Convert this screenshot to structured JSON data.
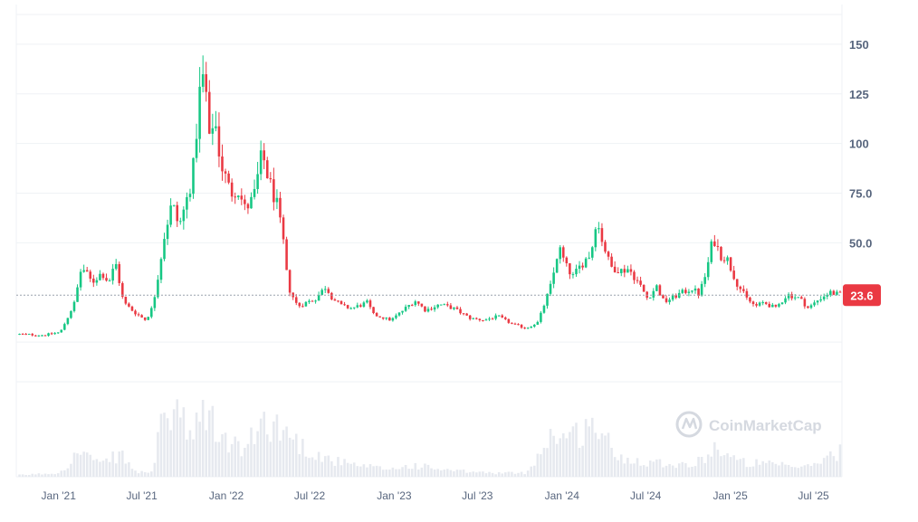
{
  "watermark": {
    "brand": "CoinMarketCap",
    "icon": "coinmarketcap-logo-icon"
  },
  "current_price": {
    "label": "23.6",
    "value": 23.6,
    "color": "#ea3943"
  },
  "colors": {
    "up": "#16c784",
    "down": "#ea3943",
    "volume": "#e6e9ef",
    "grid": "#eff2f5",
    "axis_text": "#58667e"
  },
  "chart_data": {
    "type": "candlestick",
    "title": "",
    "xlabel": "",
    "ylabel": "",
    "y_ticks": [
      50.0,
      75.0,
      100,
      125,
      150
    ],
    "y_tick_labels": [
      "50.0",
      "75.0",
      "100",
      "125",
      "150"
    ],
    "ylim": [
      -20,
      170
    ],
    "x_tick_labels": [
      "Jan '21",
      "Jul '21",
      "Jan '22",
      "Jul '22",
      "Jan '23",
      "Jul '23",
      "Jan '24",
      "Jul '24",
      "Jan '25",
      "Jul '25"
    ],
    "xlim": [
      "2020-10-01",
      "2025-09-01"
    ],
    "grid": true,
    "price_path": [
      [
        "2020-10-01",
        4
      ],
      [
        "2020-12-01",
        3.5
      ],
      [
        "2021-01-05",
        5
      ],
      [
        "2021-01-20",
        12
      ],
      [
        "2021-02-05",
        20
      ],
      [
        "2021-02-20",
        38
      ],
      [
        "2021-03-15",
        30
      ],
      [
        "2021-04-05",
        35
      ],
      [
        "2021-04-20",
        30
      ],
      [
        "2021-05-05",
        40
      ],
      [
        "2021-05-22",
        20
      ],
      [
        "2021-06-15",
        15
      ],
      [
        "2021-07-10",
        11
      ],
      [
        "2021-07-25",
        18
      ],
      [
        "2021-08-05",
        33
      ],
      [
        "2021-08-20",
        55
      ],
      [
        "2021-09-05",
        70
      ],
      [
        "2021-09-20",
        58
      ],
      [
        "2021-10-05",
        70
      ],
      [
        "2021-10-20",
        85
      ],
      [
        "2021-11-05",
        128
      ],
      [
        "2021-11-15",
        135
      ],
      [
        "2021-11-25",
        100
      ],
      [
        "2021-12-05",
        115
      ],
      [
        "2021-12-20",
        90
      ],
      [
        "2022-01-10",
        75
      ],
      [
        "2022-01-25",
        78
      ],
      [
        "2022-02-10",
        67
      ],
      [
        "2022-03-01",
        72
      ],
      [
        "2022-03-20",
        95
      ],
      [
        "2022-04-05",
        80
      ],
      [
        "2022-04-20",
        70
      ],
      [
        "2022-05-05",
        50
      ],
      [
        "2022-05-15",
        28
      ],
      [
        "2022-06-05",
        18
      ],
      [
        "2022-06-25",
        20
      ],
      [
        "2022-07-15",
        22
      ],
      [
        "2022-08-05",
        28
      ],
      [
        "2022-08-20",
        22
      ],
      [
        "2022-09-10",
        18
      ],
      [
        "2022-10-01",
        17
      ],
      [
        "2022-11-05",
        20
      ],
      [
        "2022-11-15",
        14
      ],
      [
        "2022-12-25",
        11
      ],
      [
        "2023-01-20",
        16
      ],
      [
        "2023-02-15",
        21
      ],
      [
        "2023-03-10",
        16
      ],
      [
        "2023-04-10",
        19
      ],
      [
        "2023-05-10",
        17
      ],
      [
        "2023-06-15",
        12
      ],
      [
        "2023-07-15",
        11
      ],
      [
        "2023-08-15",
        13
      ],
      [
        "2023-09-15",
        9
      ],
      [
        "2023-10-15",
        7
      ],
      [
        "2023-11-10",
        10
      ],
      [
        "2023-11-25",
        20
      ],
      [
        "2023-12-10",
        30
      ],
      [
        "2023-12-25",
        48
      ],
      [
        "2024-01-10",
        38
      ],
      [
        "2024-01-25",
        33
      ],
      [
        "2024-02-15",
        40
      ],
      [
        "2024-03-05",
        45
      ],
      [
        "2024-03-15",
        62
      ],
      [
        "2024-03-28",
        52
      ],
      [
        "2024-04-15",
        38
      ],
      [
        "2024-05-10",
        36
      ],
      [
        "2024-05-25",
        37
      ],
      [
        "2024-06-15",
        30
      ],
      [
        "2024-07-05",
        22
      ],
      [
        "2024-07-25",
        28
      ],
      [
        "2024-08-10",
        20
      ],
      [
        "2024-09-10",
        24
      ],
      [
        "2024-10-10",
        27
      ],
      [
        "2024-10-25",
        24
      ],
      [
        "2024-11-10",
        35
      ],
      [
        "2024-11-25",
        53
      ],
      [
        "2024-12-10",
        44
      ],
      [
        "2024-12-25",
        42
      ],
      [
        "2025-01-15",
        30
      ],
      [
        "2025-02-05",
        22
      ],
      [
        "2025-02-25",
        18
      ],
      [
        "2025-03-15",
        20
      ],
      [
        "2025-04-10",
        17
      ],
      [
        "2025-05-05",
        24
      ],
      [
        "2025-06-01",
        22
      ],
      [
        "2025-06-20",
        17
      ],
      [
        "2025-07-15",
        22
      ],
      [
        "2025-08-05",
        25
      ],
      [
        "2025-08-31",
        23.6
      ]
    ],
    "volume_level_path": [
      [
        "2020-10-01",
        0.02
      ],
      [
        "2021-01-01",
        0.05
      ],
      [
        "2021-02-20",
        0.35
      ],
      [
        "2021-04-01",
        0.15
      ],
      [
        "2021-05-15",
        0.3
      ],
      [
        "2021-06-20",
        0.05
      ],
      [
        "2021-07-25",
        0.08
      ],
      [
        "2021-08-10",
        0.6
      ],
      [
        "2021-09-15",
        0.95
      ],
      [
        "2021-10-15",
        0.45
      ],
      [
        "2021-11-15",
        0.9
      ],
      [
        "2021-12-20",
        0.5
      ],
      [
        "2022-02-10",
        0.35
      ],
      [
        "2022-03-25",
        0.75
      ],
      [
        "2022-05-10",
        0.6
      ],
      [
        "2022-06-15",
        0.4
      ],
      [
        "2022-08-01",
        0.25
      ],
      [
        "2022-10-01",
        0.15
      ],
      [
        "2022-12-20",
        0.1
      ],
      [
        "2023-02-15",
        0.15
      ],
      [
        "2023-05-01",
        0.08
      ],
      [
        "2023-08-01",
        0.05
      ],
      [
        "2023-10-15",
        0.05
      ],
      [
        "2023-12-15",
        0.6
      ],
      [
        "2024-01-15",
        0.5
      ],
      [
        "2024-03-15",
        0.7
      ],
      [
        "2024-05-01",
        0.25
      ],
      [
        "2024-07-15",
        0.2
      ],
      [
        "2024-10-15",
        0.15
      ],
      [
        "2024-12-01",
        0.4
      ],
      [
        "2025-01-15",
        0.2
      ],
      [
        "2025-04-15",
        0.15
      ],
      [
        "2025-06-15",
        0.12
      ],
      [
        "2025-08-31",
        0.35
      ]
    ]
  }
}
